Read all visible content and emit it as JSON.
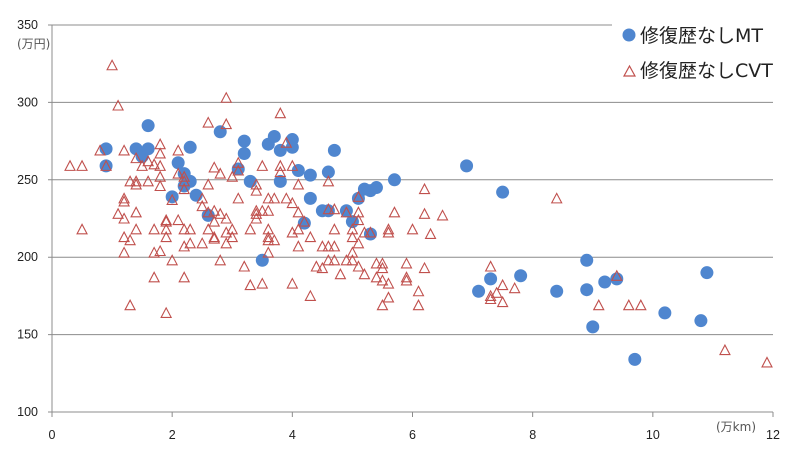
{
  "chart_data": {
    "type": "scatter",
    "title": "",
    "xlabel": "(万km)",
    "ylabel": "(万円)",
    "xlim": [
      0,
      12
    ],
    "ylim": [
      100,
      350
    ],
    "xticks": [
      0,
      2,
      4,
      6,
      8,
      10,
      12
    ],
    "yticks": [
      100,
      150,
      200,
      250,
      300,
      350
    ],
    "grid": "horizontal",
    "legend_position": "top-right",
    "series": [
      {
        "name": "修復歴なしMT",
        "marker": "circle",
        "color": "#4F86CF",
        "points": [
          [
            0.9,
            270
          ],
          [
            0.9,
            259
          ],
          [
            1.4,
            270
          ],
          [
            1.5,
            265
          ],
          [
            1.6,
            285
          ],
          [
            1.6,
            270
          ],
          [
            2.1,
            261
          ],
          [
            2.2,
            254
          ],
          [
            2.2,
            246
          ],
          [
            2.3,
            249
          ],
          [
            2.3,
            271
          ],
          [
            2.0,
            239
          ],
          [
            2.4,
            240
          ],
          [
            2.6,
            227
          ],
          [
            2.8,
            281
          ],
          [
            3.1,
            257
          ],
          [
            3.2,
            275
          ],
          [
            3.2,
            267
          ],
          [
            3.3,
            249
          ],
          [
            3.5,
            198
          ],
          [
            3.6,
            273
          ],
          [
            3.7,
            278
          ],
          [
            3.8,
            269
          ],
          [
            3.8,
            249
          ],
          [
            4.0,
            276
          ],
          [
            4.0,
            271
          ],
          [
            4.1,
            256
          ],
          [
            4.3,
            253
          ],
          [
            4.3,
            238
          ],
          [
            4.2,
            222
          ],
          [
            4.5,
            230
          ],
          [
            4.6,
            230
          ],
          [
            4.6,
            255
          ],
          [
            4.7,
            269
          ],
          [
            4.9,
            230
          ],
          [
            5.0,
            223
          ],
          [
            5.1,
            238
          ],
          [
            5.2,
            244
          ],
          [
            5.3,
            243
          ],
          [
            5.3,
            215
          ],
          [
            5.4,
            245
          ],
          [
            5.7,
            250
          ],
          [
            6.9,
            259
          ],
          [
            7.5,
            242
          ],
          [
            7.1,
            178
          ],
          [
            7.3,
            186
          ],
          [
            7.8,
            188
          ],
          [
            8.4,
            178
          ],
          [
            8.9,
            198
          ],
          [
            8.9,
            179
          ],
          [
            9.0,
            155
          ],
          [
            9.2,
            184
          ],
          [
            9.4,
            186
          ],
          [
            9.7,
            134
          ],
          [
            10.2,
            164
          ],
          [
            10.8,
            159
          ],
          [
            10.9,
            190
          ]
        ]
      },
      {
        "name": "修復歴なしCVT",
        "marker": "triangle-open",
        "color": "#C0504D",
        "points": [
          [
            0.3,
            259
          ],
          [
            0.5,
            259
          ],
          [
            0.5,
            218
          ],
          [
            0.8,
            269
          ],
          [
            0.9,
            259
          ],
          [
            1.0,
            324
          ],
          [
            1.1,
            298
          ],
          [
            1.1,
            228
          ],
          [
            1.2,
            269
          ],
          [
            1.2,
            238
          ],
          [
            1.2,
            236
          ],
          [
            1.2,
            225
          ],
          [
            1.2,
            213
          ],
          [
            1.2,
            203
          ],
          [
            1.3,
            249
          ],
          [
            1.3,
            211
          ],
          [
            1.3,
            169
          ],
          [
            1.4,
            264
          ],
          [
            1.4,
            249
          ],
          [
            1.4,
            247
          ],
          [
            1.4,
            229
          ],
          [
            1.4,
            218
          ],
          [
            1.5,
            259
          ],
          [
            1.6,
            262
          ],
          [
            1.6,
            249
          ],
          [
            1.7,
            260
          ],
          [
            1.7,
            218
          ],
          [
            1.7,
            203
          ],
          [
            1.7,
            187
          ],
          [
            1.8,
            273
          ],
          [
            1.8,
            267
          ],
          [
            1.8,
            259
          ],
          [
            1.8,
            252
          ],
          [
            1.8,
            246
          ],
          [
            1.8,
            204
          ],
          [
            1.9,
            224
          ],
          [
            1.9,
            223
          ],
          [
            1.9,
            218
          ],
          [
            1.9,
            213
          ],
          [
            1.9,
            164
          ],
          [
            2.0,
            237
          ],
          [
            2.0,
            198
          ],
          [
            2.1,
            269
          ],
          [
            2.1,
            254
          ],
          [
            2.1,
            224
          ],
          [
            2.2,
            252
          ],
          [
            2.2,
            249
          ],
          [
            2.2,
            244
          ],
          [
            2.2,
            218
          ],
          [
            2.2,
            207
          ],
          [
            2.2,
            187
          ],
          [
            2.3,
            218
          ],
          [
            2.3,
            209
          ],
          [
            2.5,
            238
          ],
          [
            2.5,
            233
          ],
          [
            2.5,
            209
          ],
          [
            2.6,
            287
          ],
          [
            2.6,
            247
          ],
          [
            2.6,
            229
          ],
          [
            2.6,
            218
          ],
          [
            2.7,
            258
          ],
          [
            2.7,
            230
          ],
          [
            2.7,
            223
          ],
          [
            2.7,
            213
          ],
          [
            2.7,
            212
          ],
          [
            2.8,
            254
          ],
          [
            2.8,
            228
          ],
          [
            2.8,
            198
          ],
          [
            2.9,
            303
          ],
          [
            2.9,
            286
          ],
          [
            2.9,
            225
          ],
          [
            2.9,
            216
          ],
          [
            2.9,
            209
          ],
          [
            3.0,
            252
          ],
          [
            3.0,
            218
          ],
          [
            3.0,
            213
          ],
          [
            3.1,
            261
          ],
          [
            3.1,
            256
          ],
          [
            3.1,
            238
          ],
          [
            3.2,
            194
          ],
          [
            3.3,
            218
          ],
          [
            3.3,
            182
          ],
          [
            3.4,
            247
          ],
          [
            3.4,
            243
          ],
          [
            3.4,
            230
          ],
          [
            3.4,
            228
          ],
          [
            3.4,
            225
          ],
          [
            3.5,
            259
          ],
          [
            3.5,
            230
          ],
          [
            3.5,
            183
          ],
          [
            3.6,
            238
          ],
          [
            3.6,
            230
          ],
          [
            3.6,
            218
          ],
          [
            3.6,
            213
          ],
          [
            3.6,
            211
          ],
          [
            3.6,
            203
          ],
          [
            3.7,
            238
          ],
          [
            3.7,
            211
          ],
          [
            3.8,
            293
          ],
          [
            3.8,
            259
          ],
          [
            3.8,
            255
          ],
          [
            3.9,
            274
          ],
          [
            3.9,
            238
          ],
          [
            4.0,
            259
          ],
          [
            4.0,
            235
          ],
          [
            4.0,
            216
          ],
          [
            4.0,
            183
          ],
          [
            4.1,
            247
          ],
          [
            4.1,
            229
          ],
          [
            4.1,
            218
          ],
          [
            4.1,
            207
          ],
          [
            4.2,
            223
          ],
          [
            4.3,
            213
          ],
          [
            4.3,
            175
          ],
          [
            4.4,
            194
          ],
          [
            4.5,
            193
          ],
          [
            4.5,
            207
          ],
          [
            4.6,
            249
          ],
          [
            4.6,
            231
          ],
          [
            4.6,
            207
          ],
          [
            4.6,
            198
          ],
          [
            4.7,
            231
          ],
          [
            4.7,
            218
          ],
          [
            4.7,
            207
          ],
          [
            4.7,
            198
          ],
          [
            4.8,
            189
          ],
          [
            4.9,
            198
          ],
          [
            4.9,
            229
          ],
          [
            5.0,
            218
          ],
          [
            5.0,
            213
          ],
          [
            5.0,
            203
          ],
          [
            5.0,
            198
          ],
          [
            5.1,
            239
          ],
          [
            5.1,
            229
          ],
          [
            5.1,
            224
          ],
          [
            5.1,
            209
          ],
          [
            5.1,
            194
          ],
          [
            5.2,
            216
          ],
          [
            5.2,
            189
          ],
          [
            5.3,
            216
          ],
          [
            5.4,
            196
          ],
          [
            5.4,
            187
          ],
          [
            5.5,
            196
          ],
          [
            5.5,
            193
          ],
          [
            5.5,
            185
          ],
          [
            5.5,
            169
          ],
          [
            5.6,
            218
          ],
          [
            5.6,
            216
          ],
          [
            5.6,
            183
          ],
          [
            5.6,
            174
          ],
          [
            5.7,
            229
          ],
          [
            5.9,
            196
          ],
          [
            5.9,
            187
          ],
          [
            5.9,
            185
          ],
          [
            6.0,
            218
          ],
          [
            6.1,
            178
          ],
          [
            6.1,
            169
          ],
          [
            6.2,
            244
          ],
          [
            6.2,
            228
          ],
          [
            6.2,
            193
          ],
          [
            6.3,
            215
          ],
          [
            6.5,
            227
          ],
          [
            7.3,
            194
          ],
          [
            7.3,
            175
          ],
          [
            7.3,
            173
          ],
          [
            7.4,
            177
          ],
          [
            7.5,
            182
          ],
          [
            7.5,
            171
          ],
          [
            7.7,
            180
          ],
          [
            8.4,
            238
          ],
          [
            9.1,
            169
          ],
          [
            9.4,
            188
          ],
          [
            9.6,
            169
          ],
          [
            9.8,
            169
          ],
          [
            11.2,
            140
          ],
          [
            11.9,
            132
          ]
        ]
      }
    ]
  }
}
